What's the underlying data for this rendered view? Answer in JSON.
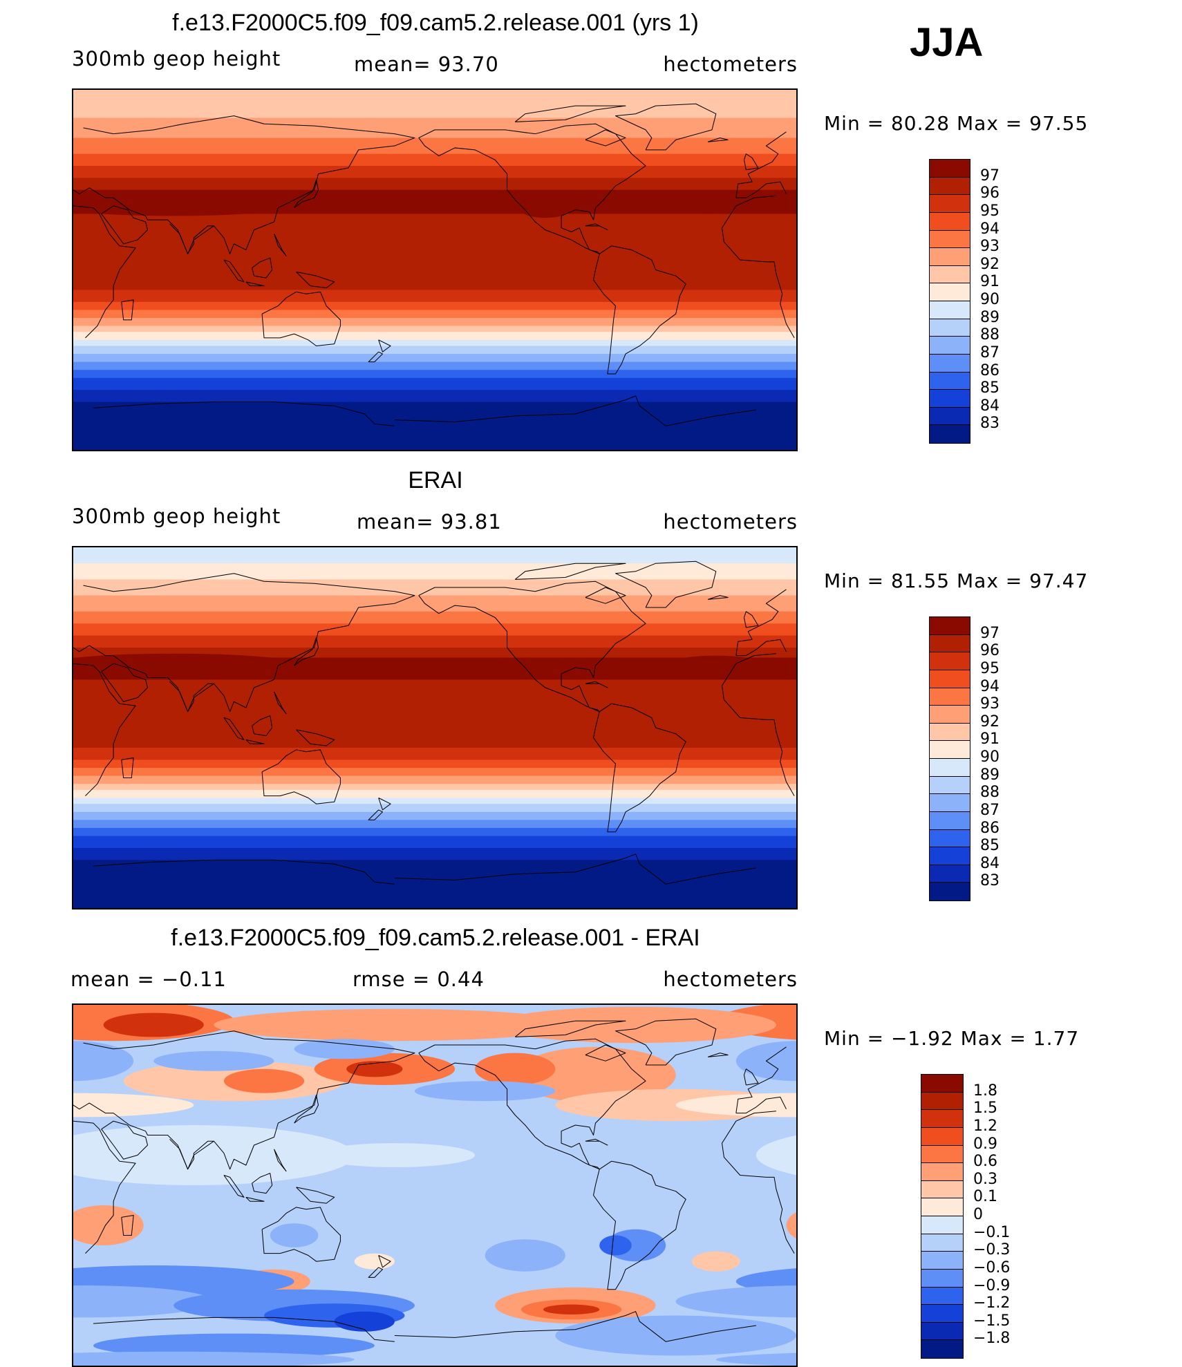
{
  "season": "JJA",
  "panels": [
    {
      "title": "f.e13.F2000C5.f09_f09.cam5.2.release.001 (yrs 1)",
      "left_label": "300mb geop height",
      "center_label": "mean=   93.70",
      "right_label": "hectometers",
      "minmax": "Min =    80.28  Max =    97.55",
      "colorbar": {
        "labels": [
          "97",
          "96",
          "95",
          "94",
          "93",
          "92",
          "91",
          "90",
          "89",
          "88",
          "87",
          "86",
          "85",
          "84",
          "83"
        ],
        "colors": [
          "#8b0a00",
          "#b22003",
          "#d1320d",
          "#f04e1e",
          "#fc7643",
          "#fe9f76",
          "#ffc6a8",
          "#ffe9d8",
          "#d8e8fb",
          "#b5d1fa",
          "#8cb3f9",
          "#5d8ff6",
          "#2e63ee",
          "#1441d8",
          "#0a2ab3",
          "#011a86"
        ]
      },
      "map": {
        "type": "geopotential",
        "dataset": "model",
        "bands": [
          {
            "lat_n": 90,
            "level": 91
          },
          {
            "lat_n": 76,
            "level": 92
          },
          {
            "lat_n": 66,
            "level": 93
          },
          {
            "lat_n": 58,
            "level": 94
          },
          {
            "lat_n": 52,
            "level": 95
          },
          {
            "lat_n": 46,
            "level": 96
          },
          {
            "lat_n": 40,
            "level": 97
          },
          {
            "lat_n": 28,
            "level": 96
          },
          {
            "lat_n": -10,
            "level": 95
          },
          {
            "lat_n": -16,
            "level": 94
          },
          {
            "lat_n": -20,
            "level": 93
          },
          {
            "lat_n": -24,
            "level": 92
          },
          {
            "lat_n": -28,
            "level": 91
          },
          {
            "lat_n": -31,
            "level": 90
          },
          {
            "lat_n": -35,
            "level": 89
          },
          {
            "lat_n": -38,
            "level": 88
          },
          {
            "lat_n": -42,
            "level": 87
          },
          {
            "lat_n": -46,
            "level": 86
          },
          {
            "lat_n": -50,
            "level": 85
          },
          {
            "lat_n": -54,
            "level": 84
          },
          {
            "lat_n": -60,
            "level": 83
          },
          {
            "lat_n": -66,
            "level": 82
          }
        ]
      }
    },
    {
      "title": "ERAI",
      "left_label": "300mb geop height",
      "center_label": "mean=   93.81",
      "right_label": "hectometers",
      "minmax": "Min =    81.55  Max =    97.47",
      "colorbar": {
        "labels": [
          "97",
          "96",
          "95",
          "94",
          "93",
          "92",
          "91",
          "90",
          "89",
          "88",
          "87",
          "86",
          "85",
          "84",
          "83"
        ],
        "colors": [
          "#8b0a00",
          "#b22003",
          "#d1320d",
          "#f04e1e",
          "#fc7643",
          "#fe9f76",
          "#ffc6a8",
          "#ffe9d8",
          "#d8e8fb",
          "#b5d1fa",
          "#8cb3f9",
          "#5d8ff6",
          "#2e63ee",
          "#1441d8",
          "#0a2ab3",
          "#011a86"
        ]
      },
      "map": {
        "type": "geopotential",
        "dataset": "obs",
        "bands": [
          {
            "lat_n": 90,
            "level": 89
          },
          {
            "lat_n": 82,
            "level": 90
          },
          {
            "lat_n": 74,
            "level": 91
          },
          {
            "lat_n": 66,
            "level": 92
          },
          {
            "lat_n": 58,
            "level": 93
          },
          {
            "lat_n": 52,
            "level": 94
          },
          {
            "lat_n": 46,
            "level": 95
          },
          {
            "lat_n": 40,
            "level": 96
          },
          {
            "lat_n": 35,
            "level": 97
          },
          {
            "lat_n": 24,
            "level": 96
          },
          {
            "lat_n": -10,
            "level": 95
          },
          {
            "lat_n": -16,
            "level": 94
          },
          {
            "lat_n": -20,
            "level": 93
          },
          {
            "lat_n": -24,
            "level": 92
          },
          {
            "lat_n": -28,
            "level": 91
          },
          {
            "lat_n": -31,
            "level": 90
          },
          {
            "lat_n": -35,
            "level": 89
          },
          {
            "lat_n": -38,
            "level": 88
          },
          {
            "lat_n": -42,
            "level": 87
          },
          {
            "lat_n": -46,
            "level": 86
          },
          {
            "lat_n": -50,
            "level": 85
          },
          {
            "lat_n": -54,
            "level": 84
          },
          {
            "lat_n": -60,
            "level": 83
          },
          {
            "lat_n": -66,
            "level": 82
          }
        ]
      }
    },
    {
      "title": "f.e13.F2000C5.f09_f09.cam5.2.release.001 - ERAI",
      "left_label": "mean =    −0.11",
      "center_label": "rmse =     0.44",
      "right_label": "hectometers",
      "minmax": "Min =    −1.92  Max =      1.77",
      "colorbar": {
        "labels": [
          "1.8",
          "1.5",
          "1.2",
          "0.9",
          "0.6",
          "0.3",
          "0.1",
          "0",
          "−0.1",
          "−0.3",
          "−0.6",
          "−0.9",
          "−1.2",
          "−1.5",
          "−1.8"
        ],
        "colors": [
          "#8b0a00",
          "#b22003",
          "#d1320d",
          "#f04e1e",
          "#fc7643",
          "#fe9f76",
          "#ffc6a8",
          "#ffe9d8",
          "#d8e8fb",
          "#b5d1fa",
          "#8cb3f9",
          "#5d8ff6",
          "#2e63ee",
          "#1441d8",
          "#0a2ab3",
          "#011a86"
        ]
      },
      "map": {
        "type": "difference",
        "background_color": "#b5d1fa",
        "blobs": [
          {
            "lon": 40,
            "lat": 82,
            "rx": 60,
            "ry": 10,
            "color": "#fc7643"
          },
          {
            "lon": 60,
            "lat": 80,
            "rx": 25,
            "ry": 6,
            "color": "#d1320d"
          },
          {
            "lon": 180,
            "lat": 80,
            "rx": 90,
            "ry": 8,
            "color": "#fe9f76"
          },
          {
            "lon": 300,
            "lat": 80,
            "rx": 70,
            "ry": 9,
            "color": "#fe9f76"
          },
          {
            "lon": 100,
            "lat": 52,
            "rx": 55,
            "ry": 10,
            "color": "#ffc6a8"
          },
          {
            "lon": 115,
            "lat": 52,
            "rx": 20,
            "ry": 6,
            "color": "#fc7643"
          },
          {
            "lon": 175,
            "lat": 58,
            "rx": 35,
            "ry": 8,
            "color": "#fc7643"
          },
          {
            "lon": 170,
            "lat": 58,
            "rx": 14,
            "ry": 4,
            "color": "#d1320d"
          },
          {
            "lon": 280,
            "lat": 55,
            "rx": 40,
            "ry": 14,
            "color": "#fe9f76"
          },
          {
            "lon": 240,
            "lat": 58,
            "rx": 20,
            "ry": 8,
            "color": "#fc7643"
          },
          {
            "lon": 320,
            "lat": 40,
            "rx": 60,
            "ry": 8,
            "color": "#ffc6a8"
          },
          {
            "lon": 20,
            "lat": 40,
            "rx": 60,
            "ry": 6,
            "color": "#ffe9d8"
          },
          {
            "lon": 20,
            "lat": 62,
            "rx": 30,
            "ry": 10,
            "color": "#8cb3f9"
          },
          {
            "lon": 90,
            "lat": 62,
            "rx": 30,
            "ry": 5,
            "color": "#8cb3f9"
          },
          {
            "lon": 155,
            "lat": 68,
            "rx": 25,
            "ry": 5,
            "color": "#8cb3f9"
          },
          {
            "lon": 225,
            "lat": 47,
            "rx": 35,
            "ry": 5,
            "color": "#8cb3f9"
          },
          {
            "lon": 80,
            "lat": 15,
            "rx": 80,
            "ry": 15,
            "color": "#d8e8fb"
          },
          {
            "lon": 180,
            "lat": 15,
            "rx": 40,
            "ry": 6,
            "color": "#d8e8fb"
          },
          {
            "lon": 35,
            "lat": -20,
            "rx": 20,
            "ry": 10,
            "color": "#fe9f76"
          },
          {
            "lon": 130,
            "lat": -25,
            "rx": 12,
            "ry": 6,
            "color": "#8cb3f9"
          },
          {
            "lon": 170,
            "lat": -38,
            "rx": 10,
            "ry": 4,
            "color": "#ffe9d8"
          },
          {
            "lon": 120,
            "lat": -48,
            "rx": 18,
            "ry": 6,
            "color": "#fe9f76"
          },
          {
            "lon": 120,
            "lat": -48,
            "rx": 7,
            "ry": 2.5,
            "color": "#fc7643"
          },
          {
            "lon": 60,
            "lat": -48,
            "rx": 70,
            "ry": 8,
            "color": "#5d8ff6"
          },
          {
            "lon": 300,
            "lat": -30,
            "rx": 15,
            "ry": 8,
            "color": "#5d8ff6"
          },
          {
            "lon": 290,
            "lat": -30,
            "rx": 8,
            "ry": 5,
            "color": "#2e63ee"
          },
          {
            "lon": 245,
            "lat": -35,
            "rx": 20,
            "ry": 8,
            "color": "#8cb3f9"
          },
          {
            "lon": 340,
            "lat": -38,
            "rx": 12,
            "ry": 5,
            "color": "#ffc6a8"
          },
          {
            "lon": 25,
            "lat": -58,
            "rx": 65,
            "ry": 8,
            "color": "#8cb3f9"
          },
          {
            "lon": 130,
            "lat": -60,
            "rx": 60,
            "ry": 8,
            "color": "#5d8ff6"
          },
          {
            "lon": 150,
            "lat": -65,
            "rx": 35,
            "ry": 6,
            "color": "#2e63ee"
          },
          {
            "lon": 165,
            "lat": -68,
            "rx": 15,
            "ry": 5,
            "color": "#1441d8"
          },
          {
            "lon": 270,
            "lat": -60,
            "rx": 40,
            "ry": 9,
            "color": "#fe9f76"
          },
          {
            "lon": 268,
            "lat": -62,
            "rx": 25,
            "ry": 5,
            "color": "#fc7643"
          },
          {
            "lon": 268,
            "lat": -62,
            "rx": 14,
            "ry": 2.5,
            "color": "#d1320d"
          },
          {
            "lon": 320,
            "lat": -75,
            "rx": 60,
            "ry": 10,
            "color": "#8cb3f9"
          },
          {
            "lon": 100,
            "lat": -80,
            "rx": 70,
            "ry": 6,
            "color": "#5d8ff6"
          },
          {
            "lon": 70,
            "lat": -87,
            "rx": 90,
            "ry": 4,
            "color": "#8cb3f9"
          }
        ]
      }
    }
  ]
}
